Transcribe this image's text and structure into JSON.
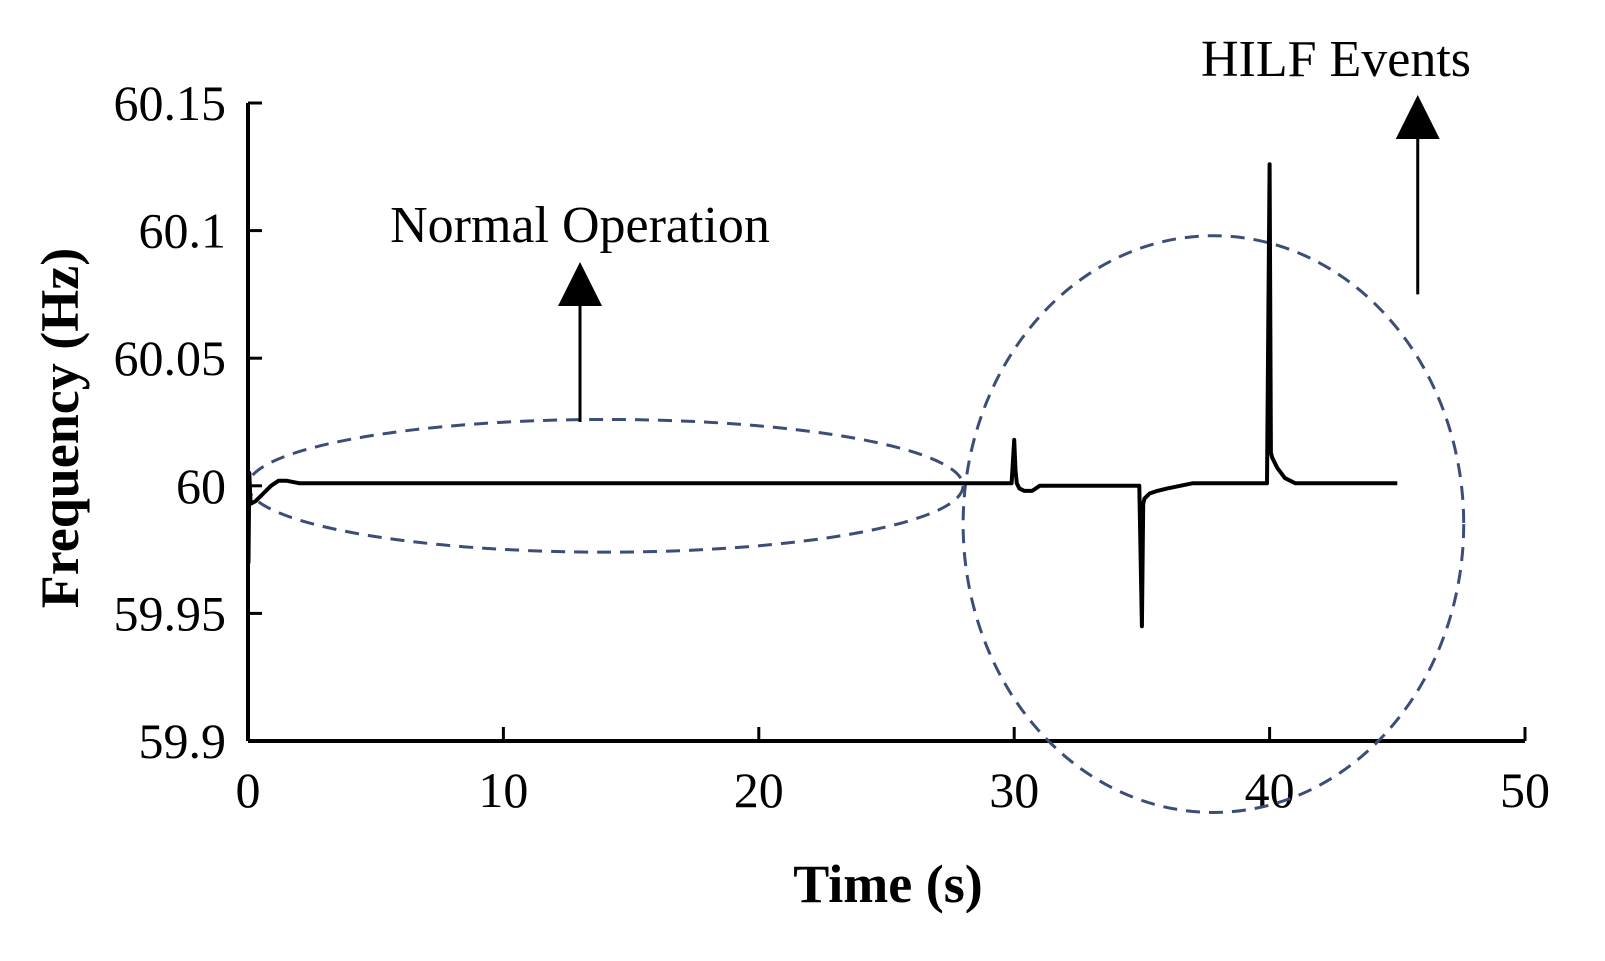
{
  "chart_data": {
    "type": "line",
    "title": "",
    "xlabel": "Time (s)",
    "ylabel": "Frequency (Hz)",
    "xlim": [
      0,
      50
    ],
    "ylim": [
      59.9,
      60.15
    ],
    "xticks": [
      0,
      10,
      20,
      30,
      40,
      50
    ],
    "xtick_labels": [
      "0",
      "10",
      "20",
      "30",
      "40",
      "50"
    ],
    "yticks": [
      59.9,
      59.95,
      60,
      60.05,
      60.1,
      60.15
    ],
    "ytick_labels": [
      "59.9",
      "59.95",
      "60",
      "60.05",
      "60.1",
      "60.15"
    ],
    "grid": false,
    "legend": "none",
    "line_color": "#000000",
    "series": [
      {
        "x": [
          0,
          0.02,
          0.05,
          0.1,
          0.3,
          0.6,
          0.9,
          1.2,
          1.5,
          2,
          5,
          10,
          15,
          20,
          25,
          29.9,
          30,
          30.05,
          30.1,
          30.2,
          30.4,
          30.7,
          31,
          34.9,
          35,
          35.05,
          35.1,
          35.3,
          35.6,
          36,
          36.5,
          37,
          38,
          39.9,
          40,
          40.05,
          40.1,
          40.3,
          40.6,
          41,
          41.5,
          42,
          43,
          45
        ],
        "y": [
          60.01,
          59.97,
          60.005,
          59.993,
          59.994,
          59.997,
          60.0,
          60.002,
          60.002,
          60.001,
          60.001,
          60.001,
          60.001,
          60.001,
          60.001,
          60.001,
          60.018,
          60.006,
          60.001,
          59.999,
          59.998,
          59.998,
          60.0,
          60.0,
          59.945,
          59.993,
          59.995,
          59.997,
          59.998,
          59.999,
          60.0,
          60.001,
          60.001,
          60.001,
          60.126,
          60.013,
          60.011,
          60.007,
          60.003,
          60.001,
          60.001,
          60.001,
          60.001,
          60.001
        ]
      }
    ],
    "annotations": [
      {
        "text": "Normal Operation",
        "x": 13,
        "y": 60.025,
        "shape": "ellipse",
        "center": [
          14,
          60.0
        ],
        "rx": 14,
        "ry": 0.026
      },
      {
        "text": "HILF Events",
        "x": 45.8,
        "y": 60.075,
        "shape": "ellipse",
        "center": [
          37.8,
          59.985
        ],
        "rx": 9.8,
        "ry": 0.113
      }
    ]
  }
}
